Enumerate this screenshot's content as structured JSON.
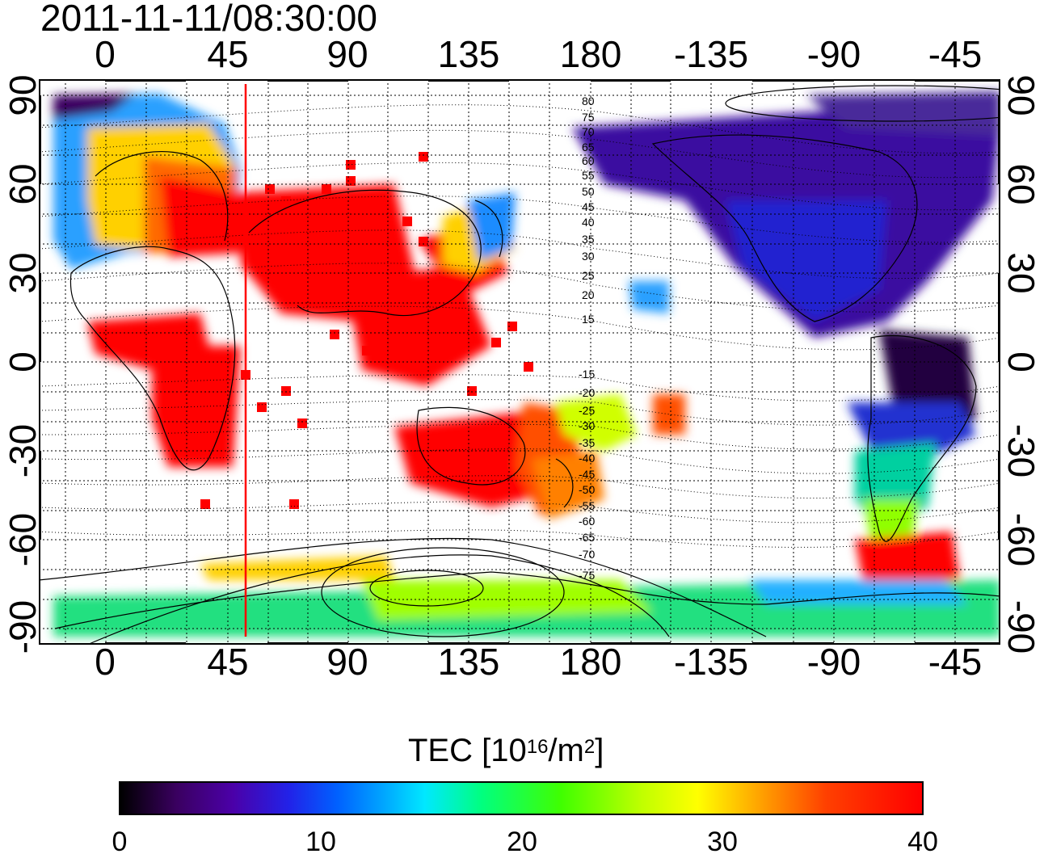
{
  "title": "2011-11-11/08:30:00",
  "lon_ticks": [
    "0",
    "45",
    "90",
    "135",
    "180",
    "-135",
    "-90",
    "-45"
  ],
  "lat_ticks": [
    "90",
    "60",
    "30",
    "0",
    "-30",
    "-60",
    "-90"
  ],
  "contour_labels": [
    "80",
    "75",
    "70",
    "65",
    "60",
    "55",
    "50",
    "45",
    "40",
    "35",
    "30",
    "25",
    "20",
    "15",
    "-15",
    "-20",
    "-25",
    "-30",
    "-35",
    "-40",
    "-45",
    "-50",
    "-55",
    "-60",
    "-65",
    "-70",
    "-75"
  ],
  "marker_longitude": 52,
  "colorbar": {
    "label_prefix": "TEC  [10",
    "label_exp1": "16",
    "label_mid": "/m",
    "label_exp2": "2",
    "label_suffix": "]",
    "ticks": [
      "0",
      "10",
      "20",
      "30",
      "40"
    ],
    "min": 0,
    "max": 40
  },
  "colors": {
    "low": "#000000",
    "high": "#ff0000",
    "marker_line": "#ff0000"
  }
}
